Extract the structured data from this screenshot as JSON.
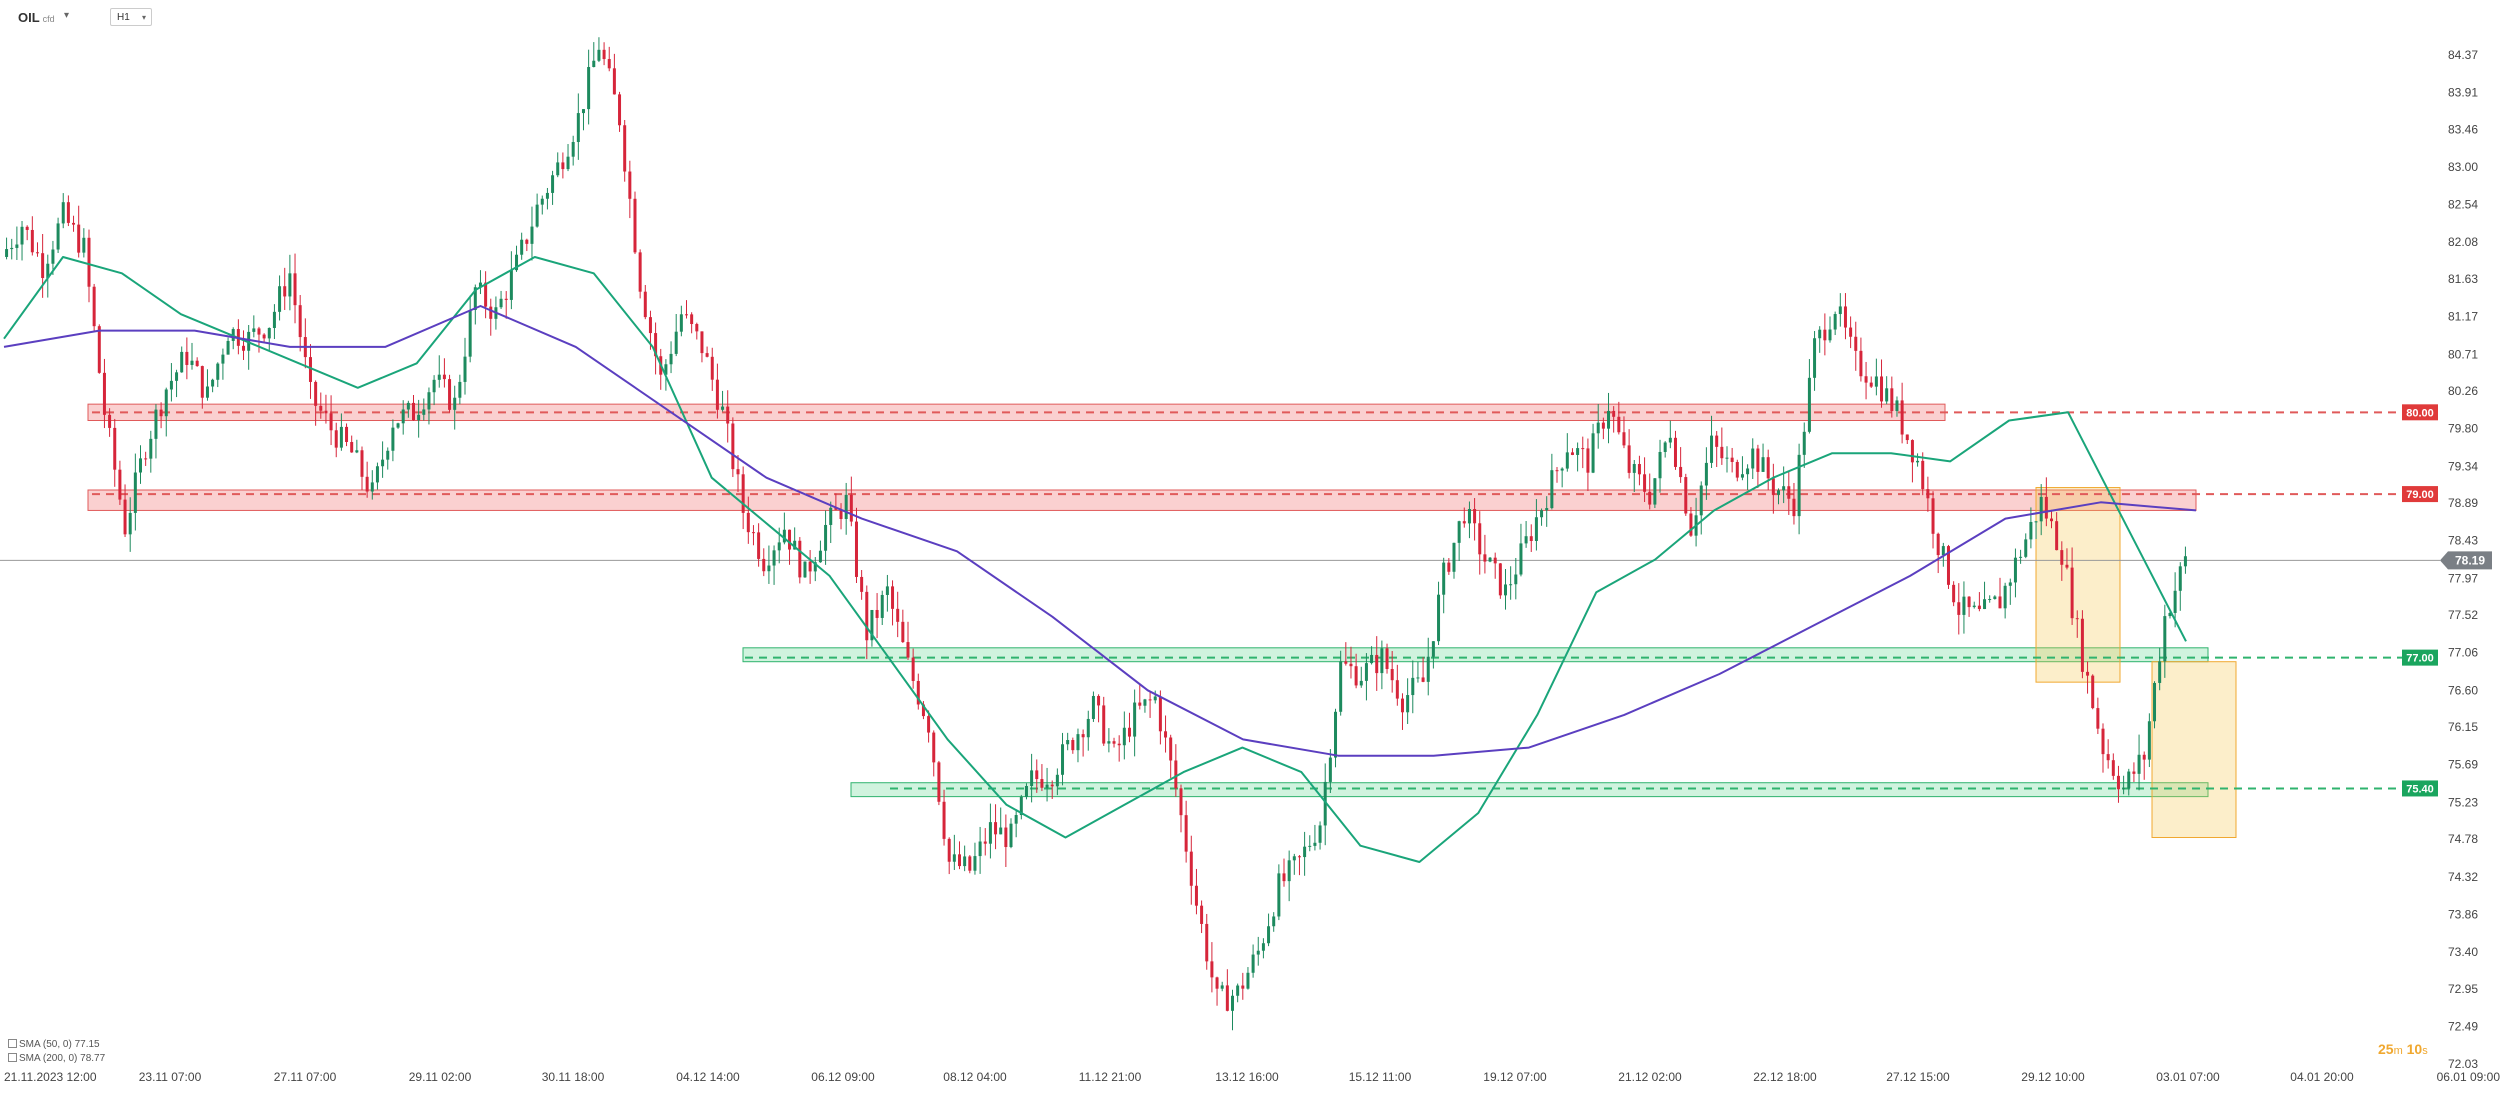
{
  "toolbar": {
    "symbol": "OIL",
    "symbol_sub": "cfd",
    "timeframe": "H1"
  },
  "indicators": [
    {
      "label": "SMA (50, 0) 77.15",
      "color": "#1aa57a"
    },
    {
      "label": "SMA (200, 0) 78.77",
      "color": "#5b3fc0"
    }
  ],
  "timer": {
    "minutes": "25",
    "minutes_unit": "m",
    "seconds": "10",
    "seconds_unit": "s"
  },
  "colors": {
    "up": "#1d8a5e",
    "down": "#d6253a",
    "sma50": "#1aa57a",
    "sma200": "#5b3fc0",
    "resistance": "#e05a5a",
    "support": "#2fb36e",
    "highlight": "#f5c35a"
  },
  "chart_data": {
    "type": "candlestick",
    "instrument": "OIL",
    "timeframe": "H1",
    "y_ticks": [
      "84.37",
      "83.91",
      "83.46",
      "83.00",
      "82.54",
      "82.08",
      "81.63",
      "81.17",
      "80.71",
      "80.26",
      "79.80",
      "79.34",
      "78.89",
      "78.43",
      "77.97",
      "77.52",
      "77.06",
      "76.60",
      "76.15",
      "75.69",
      "75.23",
      "74.78",
      "74.32",
      "73.86",
      "73.40",
      "72.95",
      "72.49",
      "72.03"
    ],
    "ylim": [
      72.03,
      84.37
    ],
    "x_ticks": [
      "21.11.2023 12:00",
      "23.11 07:00",
      "27.11 07:00",
      "29.11 02:00",
      "30.11 18:00",
      "04.12 14:00",
      "06.12 09:00",
      "08.12 04:00",
      "11.12 21:00",
      "13.12 16:00",
      "15.12 11:00",
      "19.12 07:00",
      "21.12 02:00",
      "22.12 18:00",
      "27.12 15:00",
      "29.12 10:00",
      "03.01 07:00",
      "04.01 20:00",
      "06.01 09:00"
    ],
    "current_price": {
      "label": "78.19",
      "value": 78.19
    },
    "levels": [
      {
        "label": "80.00",
        "value": 80.0,
        "kind": "resistance"
      },
      {
        "label": "79.00",
        "value": 79.0,
        "kind": "resistance"
      },
      {
        "label": "77.00",
        "value": 77.0,
        "kind": "support"
      },
      {
        "label": "75.40",
        "value": 75.4,
        "kind": "support"
      }
    ],
    "zones": [
      {
        "kind": "resistance",
        "low": 79.9,
        "high": 80.1,
        "from": "21.11.2023 12:00",
        "to": "27.12 15:00"
      },
      {
        "kind": "resistance",
        "low": 78.8,
        "high": 79.05,
        "from": "21.11.2023 12:00",
        "to": "03.01 07:00"
      },
      {
        "kind": "support",
        "low": 76.95,
        "high": 77.12,
        "from": "04.12 14:00",
        "to": "03.01 07:00"
      },
      {
        "kind": "support",
        "low": 75.3,
        "high": 75.47,
        "from": "06.12 09:00",
        "to": "03.01 07:00"
      }
    ],
    "highlights": [
      {
        "low": 76.7,
        "high": 79.08,
        "from": "29.12 10:00",
        "to": "29.12 10:00"
      },
      {
        "low": 74.8,
        "high": 76.95,
        "from": "03.01 07:00",
        "to": "03.01 07:00"
      }
    ],
    "price_path": [
      81.9,
      82.3,
      81.8,
      82.4,
      82.0,
      80.0,
      78.6,
      79.6,
      80.3,
      80.7,
      80.2,
      81.0,
      80.9,
      81.1,
      81.7,
      80.2,
      79.8,
      79.5,
      79.0,
      79.9,
      80.0,
      80.4,
      80.1,
      81.5,
      81.2,
      81.8,
      82.5,
      83.0,
      83.6,
      84.5,
      83.6,
      81.6,
      80.4,
      81.2,
      80.8,
      80.0,
      78.8,
      78.2,
      78.6,
      78.0,
      78.6,
      78.9,
      77.3,
      77.8,
      76.9,
      76.2,
      74.5,
      74.4,
      74.9,
      74.8,
      75.5,
      75.6,
      76.0,
      76.4,
      75.8,
      76.3,
      76.5,
      75.4,
      74.0,
      72.8,
      72.9,
      73.4,
      74.2,
      74.5,
      75.0,
      76.9,
      76.8,
      77.0,
      76.5,
      76.7,
      78.0,
      78.8,
      78.2,
      77.8,
      78.4,
      79.0,
      79.6,
      79.4,
      80.1,
      79.3,
      79.0,
      79.8,
      78.6,
      79.6,
      79.3,
      79.5,
      79.1,
      78.9,
      80.8,
      81.3,
      80.6,
      80.4,
      80.0,
      79.4,
      78.4,
      77.6,
      77.5,
      77.7,
      78.3,
      78.9,
      78.3,
      77.0,
      75.9,
      75.4,
      75.8,
      77.5,
      78.19
    ],
    "sma50": [
      80.9,
      81.9,
      81.7,
      81.2,
      80.9,
      80.6,
      80.3,
      80.6,
      81.5,
      81.9,
      81.7,
      80.8,
      79.2,
      78.6,
      78.0,
      77.0,
      76.0,
      75.2,
      74.8,
      75.2,
      75.6,
      75.9,
      75.6,
      74.7,
      74.5,
      75.1,
      76.3,
      77.8,
      78.2,
      78.8,
      79.2,
      79.5,
      79.5,
      79.4,
      79.9,
      80.0,
      78.6,
      77.2
    ],
    "sma200": [
      80.8,
      81.0,
      81.0,
      80.8,
      80.8,
      81.3,
      80.8,
      80.0,
      79.2,
      78.7,
      78.3,
      77.5,
      76.6,
      76.0,
      75.8,
      75.8,
      75.9,
      76.3,
      76.8,
      77.4,
      78.0,
      78.7,
      78.9,
      78.8
    ]
  }
}
